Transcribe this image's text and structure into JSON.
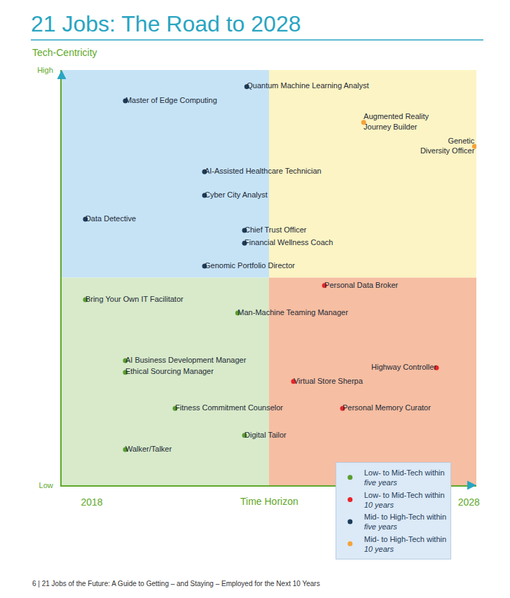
{
  "chart_data": {
    "type": "scatter",
    "title": "21 Jobs: The Road to 2028",
    "y_label": "Tech-Centricity",
    "x_label": "Time Horizon",
    "footer": "6 | 21 Jobs of the Future: A Guide to Getting – and Staying – Employed for the Next 10 Years",
    "xlim": [
      2017.2,
      2028.2
    ],
    "xticks": [
      2018,
      2028
    ],
    "ylim": [
      0,
      10
    ],
    "yticks": [
      {
        "value": 10,
        "label": "High"
      },
      {
        "value": 0,
        "label": "Low"
      }
    ],
    "grid": false,
    "legend": "lower right",
    "series": [
      {
        "name": "Low- to Mid-Tech within five years",
        "color": "#5a9e2f",
        "labels": [
          "Bring Your Own IT Facilitator",
          "Man-Machine Teaming Manager",
          "AI Business Development Manager",
          "Ethical Sourcing Manager",
          "Fitness Commitment Counselor",
          "Digital Tailor",
          "Walker/Talker"
        ],
        "x": [
          2017.83,
          2021.87,
          2018.89,
          2018.89,
          2020.21,
          2022.05,
          2018.89
        ],
        "y": [
          4.47,
          4.15,
          3.0,
          2.72,
          1.85,
          1.2,
          0.86
        ]
      },
      {
        "name": "Low- to Mid-Tech within 10 years",
        "color": "#e8262a",
        "labels": [
          "Personal Data Broker",
          "Highway Controller",
          "Virtual Store Sherpa",
          "Personal Memory Curator"
        ],
        "x": [
          2024.17,
          2027.14,
          2023.35,
          2024.65
        ],
        "y": [
          4.81,
          2.83,
          2.5,
          1.85
        ]
      },
      {
        "name": "Mid- to High-Tech within five years",
        "color": "#1d3c5a",
        "labels": [
          "Quantum Machine Learning Analyst",
          "Master of Edge Computing",
          "AI-Assisted Healthcare Technician",
          "Cyber City Analyst",
          "Data Detective",
          "Chief Trust Officer",
          "Financial Wellness Coach",
          "Genomic Portfolio Director"
        ],
        "x": [
          2022.11,
          2018.89,
          2020.99,
          2020.99,
          2017.83,
          2022.05,
          2022.05,
          2020.99
        ],
        "y": [
          9.6,
          9.26,
          7.55,
          6.98,
          6.41,
          6.14,
          5.83,
          5.28
        ]
      },
      {
        "name": "Mid- to High-Tech within 10 years",
        "color": "#f5a33a",
        "labels": [
          "Augmented Reality Journey Builder",
          "Genetic Diversity Officer"
        ],
        "x": [
          2025.21,
          2028.15
        ],
        "y": [
          8.74,
          8.16
        ]
      }
    ]
  }
}
